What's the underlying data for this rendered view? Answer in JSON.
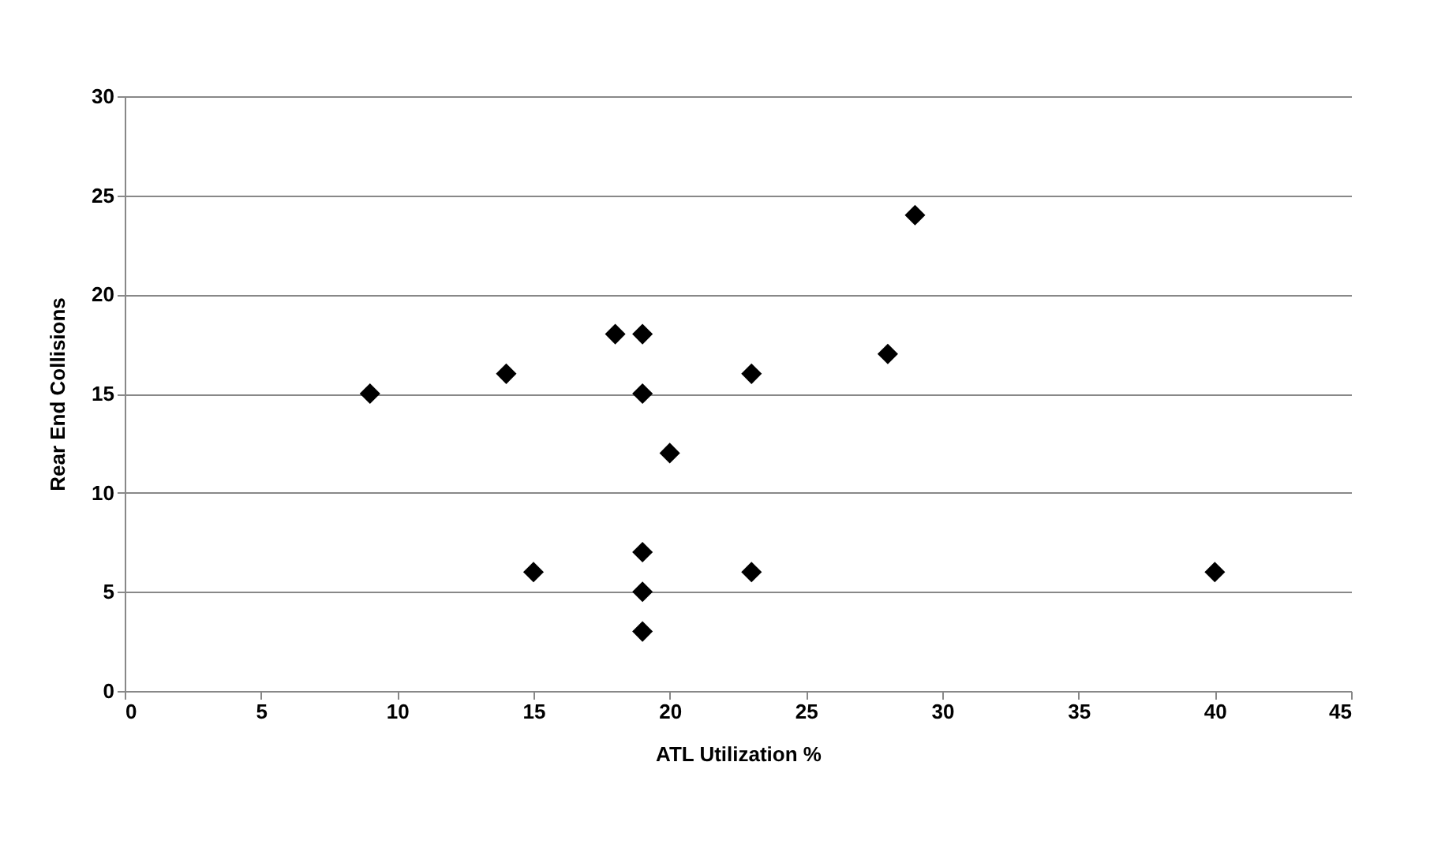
{
  "chart_data": {
    "type": "scatter",
    "xlabel": "ATL Utilization %",
    "ylabel": "Rear End Collisions",
    "x": [
      9,
      14,
      15,
      18,
      19,
      19,
      19,
      19,
      19,
      20,
      23,
      23,
      28,
      29,
      40
    ],
    "series": [
      {
        "color": "#000000",
        "values": [
          15,
          16,
          6,
          18,
          18,
          15,
          7,
          5,
          3,
          12,
          16,
          6,
          17,
          24,
          6
        ]
      }
    ],
    "xlim": [
      0,
      45
    ],
    "xticks": [
      0,
      5,
      10,
      15,
      20,
      25,
      30,
      35,
      40,
      45
    ],
    "ylim": [
      0,
      30
    ],
    "yticks": [
      0,
      5,
      10,
      15,
      20,
      25,
      30
    ],
    "grid": "y",
    "marker": "diamond"
  }
}
